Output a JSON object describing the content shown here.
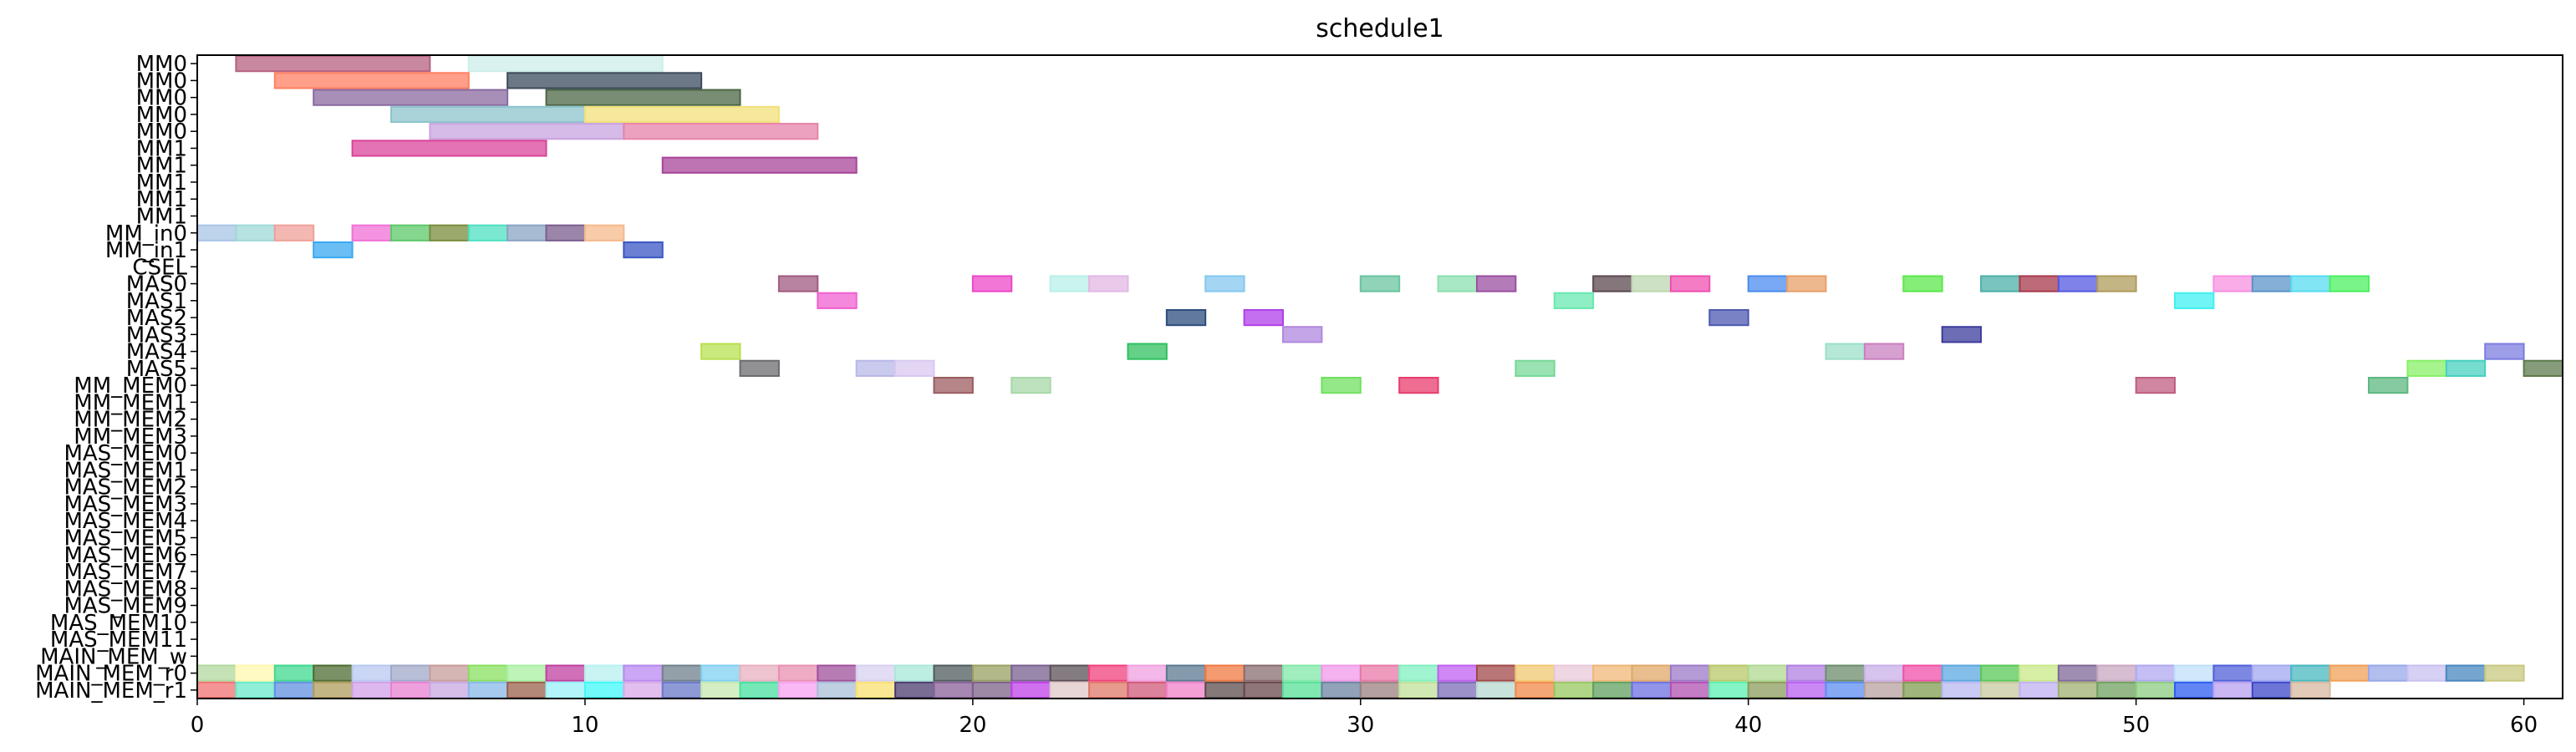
{
  "chart_data": {
    "type": "gantt",
    "title": "schedule1",
    "xlim": [
      0,
      61
    ],
    "xticks": [
      0,
      10,
      20,
      30,
      40,
      50,
      60
    ],
    "grid": false,
    "rows": [
      "MM0",
      "MM0",
      "MM0",
      "MM0",
      "MM0",
      "MM1",
      "MM1",
      "MM1",
      "MM1",
      "MM1",
      "MM_in0",
      "MM_in1",
      "CSEL",
      "MAS0",
      "MAS1",
      "MAS2",
      "MAS3",
      "MAS4",
      "MAS5",
      "MM_MEM0",
      "MM_MEM1",
      "MM_MEM2",
      "MM_MEM3",
      "MAS_MEM0",
      "MAS_MEM1",
      "MAS_MEM2",
      "MAS_MEM3",
      "MAS_MEM4",
      "MAS_MEM5",
      "MAS_MEM6",
      "MAS_MEM7",
      "MAS_MEM8",
      "MAS_MEM9",
      "MAS_MEM10",
      "MAS_MEM11",
      "MAIN_MEM_w",
      "MAIN_MEM_r0",
      "MAIN_MEM_r1"
    ],
    "tasks": [
      {
        "row": 0,
        "start": 1,
        "end": 6,
        "color": "#b5607f"
      },
      {
        "row": 0,
        "start": 7,
        "end": 12,
        "color": "#cdeeea"
      },
      {
        "row": 1,
        "start": 2,
        "end": 7,
        "color": "#ff7f61"
      },
      {
        "row": 1,
        "start": 8,
        "end": 13,
        "color": "#3c4b5e"
      },
      {
        "row": 2,
        "start": 3,
        "end": 8,
        "color": "#8a6aa0"
      },
      {
        "row": 2,
        "start": 9,
        "end": 14,
        "color": "#4c6645"
      },
      {
        "row": 3,
        "start": 5,
        "end": 10,
        "color": "#8cc3cc"
      },
      {
        "row": 3,
        "start": 10,
        "end": 15,
        "color": "#f2e07a"
      },
      {
        "row": 4,
        "start": 6,
        "end": 11,
        "color": "#c8a3e0"
      },
      {
        "row": 4,
        "start": 11,
        "end": 16,
        "color": "#e683aa"
      },
      {
        "row": 5,
        "start": 4,
        "end": 9,
        "color": "#d9449a"
      },
      {
        "row": 6,
        "start": 12,
        "end": 17,
        "color": "#a8449a"
      },
      {
        "row": 10,
        "start": 0,
        "end": 1,
        "color": "#a8c4e6"
      },
      {
        "row": 10,
        "start": 1,
        "end": 2,
        "color": "#9fd8d8"
      },
      {
        "row": 10,
        "start": 2,
        "end": 3,
        "color": "#f0a09a"
      },
      {
        "row": 10,
        "start": 4,
        "end": 5,
        "color": "#f070d6"
      },
      {
        "row": 10,
        "start": 5,
        "end": 6,
        "color": "#5cc86a"
      },
      {
        "row": 10,
        "start": 6,
        "end": 7,
        "color": "#7a8c3c"
      },
      {
        "row": 10,
        "start": 7,
        "end": 8,
        "color": "#4ee0c0"
      },
      {
        "row": 10,
        "start": 8,
        "end": 9,
        "color": "#8aa4c2"
      },
      {
        "row": 10,
        "start": 9,
        "end": 10,
        "color": "#7a5e8e"
      },
      {
        "row": 10,
        "start": 10,
        "end": 11,
        "color": "#f5b98c"
      },
      {
        "row": 11,
        "start": 3,
        "end": 4,
        "color": "#3aa8f0"
      },
      {
        "row": 11,
        "start": 11,
        "end": 12,
        "color": "#3a56c4"
      },
      {
        "row": 13,
        "start": 15,
        "end": 16,
        "color": "#a05a80"
      },
      {
        "row": 13,
        "start": 20,
        "end": 21,
        "color": "#ec48c8"
      },
      {
        "row": 13,
        "start": 22,
        "end": 23,
        "color": "#b8f0e8"
      },
      {
        "row": 13,
        "start": 23,
        "end": 24,
        "color": "#e2b8e4"
      },
      {
        "row": 13,
        "start": 26,
        "end": 27,
        "color": "#86c8f0"
      },
      {
        "row": 13,
        "start": 30,
        "end": 31,
        "color": "#6ac4a0"
      },
      {
        "row": 13,
        "start": 32,
        "end": 33,
        "color": "#8ce0b0"
      },
      {
        "row": 13,
        "start": 33,
        "end": 34,
        "color": "#9a50a0"
      },
      {
        "row": 13,
        "start": 36,
        "end": 37,
        "color": "#5c4850"
      },
      {
        "row": 13,
        "start": 37,
        "end": 38,
        "color": "#bcd8b0"
      },
      {
        "row": 13,
        "start": 38,
        "end": 39,
        "color": "#f050b0"
      },
      {
        "row": 13,
        "start": 40,
        "end": 41,
        "color": "#4c8cf0"
      },
      {
        "row": 13,
        "start": 41,
        "end": 42,
        "color": "#e8a068"
      },
      {
        "row": 13,
        "start": 44,
        "end": 45,
        "color": "#5ce84c"
      },
      {
        "row": 13,
        "start": 46,
        "end": 47,
        "color": "#4cb0a8"
      },
      {
        "row": 13,
        "start": 47,
        "end": 48,
        "color": "#a83a4c"
      },
      {
        "row": 13,
        "start": 48,
        "end": 49,
        "color": "#5458e0"
      },
      {
        "row": 13,
        "start": 49,
        "end": 50,
        "color": "#b09c5c"
      },
      {
        "row": 13,
        "start": 52,
        "end": 53,
        "color": "#f890e0"
      },
      {
        "row": 13,
        "start": 53,
        "end": 54,
        "color": "#5c94c8"
      },
      {
        "row": 13,
        "start": 54,
        "end": 55,
        "color": "#58dcf0"
      },
      {
        "row": 13,
        "start": 55,
        "end": 56,
        "color": "#4cf060"
      },
      {
        "row": 14,
        "start": 16,
        "end": 17,
        "color": "#f060d0"
      },
      {
        "row": 14,
        "start": 35,
        "end": 36,
        "color": "#68e8b0"
      },
      {
        "row": 14,
        "start": 51,
        "end": 52,
        "color": "#40f0f0"
      },
      {
        "row": 15,
        "start": 25,
        "end": 26,
        "color": "#2c4c7c"
      },
      {
        "row": 15,
        "start": 27,
        "end": 28,
        "color": "#b040e8"
      },
      {
        "row": 15,
        "start": 39,
        "end": 40,
        "color": "#4c58b0"
      },
      {
        "row": 16,
        "start": 28,
        "end": 29,
        "color": "#b088e0"
      },
      {
        "row": 16,
        "start": 45,
        "end": 46,
        "color": "#3c3c9c"
      },
      {
        "row": 17,
        "start": 13,
        "end": 14,
        "color": "#b8e050"
      },
      {
        "row": 17,
        "start": 24,
        "end": 25,
        "color": "#30c060"
      },
      {
        "row": 17,
        "start": 42,
        "end": 43,
        "color": "#9ce0c8"
      },
      {
        "row": 17,
        "start": 43,
        "end": 44,
        "color": "#c880c0"
      },
      {
        "row": 17,
        "start": 59,
        "end": 60,
        "color": "#7c7ce0"
      },
      {
        "row": 18,
        "start": 14,
        "end": 15,
        "color": "#6c6c70"
      },
      {
        "row": 18,
        "start": 17,
        "end": 18,
        "color": "#b8b8e8"
      },
      {
        "row": 18,
        "start": 18,
        "end": 19,
        "color": "#d8c8f0"
      },
      {
        "row": 18,
        "start": 34,
        "end": 35,
        "color": "#78d898"
      },
      {
        "row": 18,
        "start": 57,
        "end": 58,
        "color": "#88f068"
      },
      {
        "row": 18,
        "start": 58,
        "end": 59,
        "color": "#48d0c0"
      },
      {
        "row": 18,
        "start": 60,
        "end": 61,
        "color": "#5c7a4c"
      },
      {
        "row": 19,
        "start": 19,
        "end": 20,
        "color": "#9c5c60"
      },
      {
        "row": 19,
        "start": 21,
        "end": 22,
        "color": "#a8d8a8"
      },
      {
        "row": 19,
        "start": 29,
        "end": 30,
        "color": "#70e060"
      },
      {
        "row": 19,
        "start": 31,
        "end": 32,
        "color": "#e83c6c"
      },
      {
        "row": 19,
        "start": 50,
        "end": 51,
        "color": "#c05c80"
      },
      {
        "row": 19,
        "start": 56,
        "end": 57,
        "color": "#5cb880"
      }
    ],
    "mem_w_colors": [
      "#b0d89c",
      "#fff8b0",
      "#40d890",
      "#4c6c30",
      "#b8c8f0",
      "#a0a8c8",
      "#c89c9c",
      "#88e060",
      "#a8f0a0",
      "#c040a0",
      "#b8f0f0",
      "#b888f0",
      "#70808c",
      "#80d0f0",
      "#e8b0c0",
      "#e890b0",
      "#a0509c",
      "#d8d0f0",
      "#a8e8d8",
      "#505c5c",
      "#98a060",
      "#786090",
      "#5c5058",
      "#f0407c",
      "#f0a0e0",
      "#5c7890",
      "#f07840",
      "#886c70",
      "#80e8a8",
      "#f098e8",
      "#e878a8",
      "#80f0c0",
      "#c060f0",
      "#a04848",
      "#f0c870",
      "#e8c8d8",
      "#f0b878",
      "#e0a868",
      "#9c7ac8",
      "#b8c868",
      "#b0d890",
      "#b080e0",
      "#6c8c6c",
      "#c8b0e8",
      "#f050a8",
      "#5ca8e0",
      "#58c858",
      "#c8e888",
      "#806898",
      "#c8a8c0",
      "#b0a8f0",
      "#c0e0f8",
      "#5060d8",
      "#a0a8f0",
      "#48b8c0",
      "#f0a058",
      "#98a8e8",
      "#c8c0f0",
      "#4888c0",
      "#c8c880"
    ],
    "mem_r0_colors": [
      "#f07070",
      "#68e8c8",
      "#6090e0",
      "#b09c5c",
      "#d0a0e8",
      "#e880d0",
      "#c8a8e0",
      "#88b8e8",
      "#98604c",
      "#98f0f8",
      "#40f8f8",
      "#d8a8e8",
      "#6878c8",
      "#c8e8b0",
      "#48e0a0",
      "#f8a0f0",
      "#a8c0d8",
      "#f8e070",
      "#4c3c70",
      "#886098",
      "#7c6088",
      "#c040e8",
      "#e0c8c8",
      "#e07868",
      "#d05878",
      "#f080c8",
      "#5c4c4c",
      "#68484c",
      "#58e098",
      "#6c84a0",
      "#9c8080",
      "#c0e098",
      "#7c6cb8",
      "#b8d8d0",
      "#f08848",
      "#98c860",
      "#60a060",
      "#6c70e0",
      "#b050b0",
      "#5cf0b0",
      "#8c9c5c",
      "#b860f0",
      "#5c8cf0",
      "#b8a0a0",
      "#809c50",
      "#b8b8f0",
      "#c8c8a0",
      "#c0b0f0",
      "#a0b070",
      "#70a060",
      "#8ccc80",
      "#2c5cf0",
      "#b8a0f0",
      "#3c48c8",
      "#d8b8a0"
    ],
    "labels_ylim": [
      0,
      38
    ]
  }
}
